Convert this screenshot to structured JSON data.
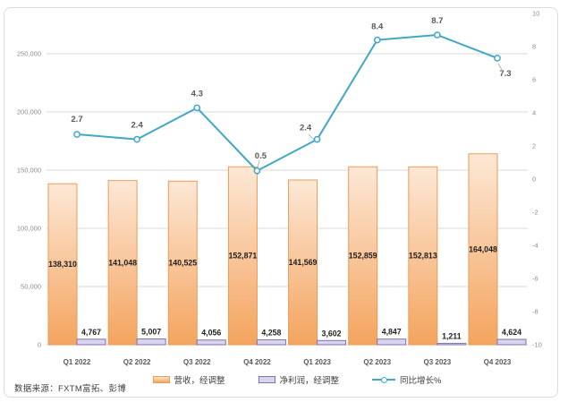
{
  "source_note": "数据来源：FXTM富拓、彭博",
  "colors": {
    "bar_fill_top": "#FDE8D6",
    "bar_fill_bottom": "#F4A45E",
    "bar_border": "#EA9C57",
    "net_fill": "#D9D3EB",
    "net_border": "#8172B2",
    "line": "#40A8C6",
    "grid": "#D9D9D9",
    "axis_text": "#8C8C8C",
    "category_text": "#595959",
    "bar_label_text": "#1F1F1F",
    "line_label_text": "#595959",
    "frame_border": "#DCDCDC"
  },
  "chart_data": {
    "type": "combo-bar-line",
    "title": "",
    "grid": true,
    "legend_position": "bottom",
    "categories": [
      "Q1 2022",
      "Q2 2022",
      "Q3 2022",
      "Q4 2022",
      "Q1 2023",
      "Q2 2023",
      "Q3 2023",
      "Q4 2023"
    ],
    "series": [
      {
        "name": "营收，经调整",
        "type": "bar",
        "axis": "left",
        "values": [
          138310,
          141048,
          140525,
          152871,
          141569,
          152859,
          152813,
          164048
        ],
        "labels": [
          "138,310",
          "141,048",
          "140,525",
          "152,871",
          "141,569",
          "152,859",
          "152,813",
          "164,048"
        ]
      },
      {
        "name": "净利润，经调整",
        "type": "bar",
        "axis": "left",
        "values": [
          4767,
          5007,
          4056,
          4258,
          3602,
          4847,
          1211,
          4624
        ],
        "labels": [
          "4,767",
          "5,007",
          "4,056",
          "4,258",
          "3,602",
          "4,847",
          "1,211",
          "4,624"
        ]
      },
      {
        "name": "同比增长%",
        "type": "line",
        "axis": "right",
        "values": [
          2.7,
          2.4,
          4.3,
          0.5,
          2.4,
          8.4,
          8.7,
          7.3
        ],
        "labels": [
          "2.7",
          "2.4",
          "4.3",
          "0.5",
          "2.4",
          "8.4",
          "8.7",
          "7.3"
        ]
      }
    ],
    "left_axis": {
      "min": 0,
      "max": 250000,
      "step": 50000,
      "tick_labels": [
        "0",
        "50,000",
        "100,000",
        "150,000",
        "200,000",
        "250,000"
      ]
    },
    "right_axis": {
      "min": -10,
      "max": 10,
      "step": 2,
      "tick_labels": [
        "10",
        "8",
        "6",
        "4",
        "2",
        "0",
        "-2",
        "-4",
        "-6",
        "-8",
        "-10"
      ]
    }
  }
}
